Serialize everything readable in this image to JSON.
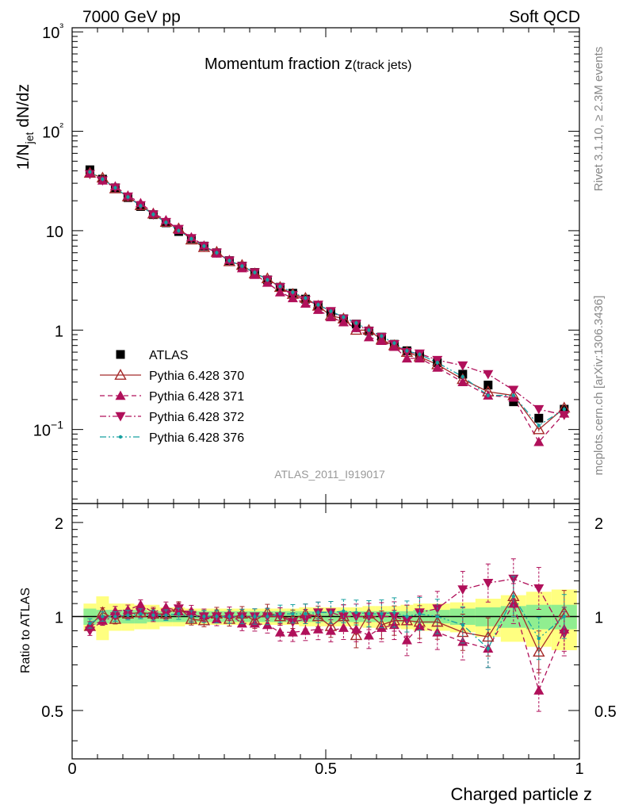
{
  "header": {
    "beam": "7000 GeV pp",
    "category": "Soft QCD"
  },
  "side": {
    "rivet": "Rivet 3.1.10, ≥ 2.3M events",
    "mcplots": "mcplots.cern.ch [arXiv:1306.3436]"
  },
  "chart_data": {
    "type": "scatter",
    "title": "Momentum fraction z",
    "title_sub": "(track jets)",
    "analysis": "ATLAS_2011_I919017",
    "xlabel": "Charged particle z",
    "ylabel_main_parts": [
      "1/N",
      "jet",
      " dN/dz"
    ],
    "ylabel_ratio": "Ratio to ATLAS",
    "xlim": [
      0,
      1
    ],
    "ylim_main": [
      0.018,
      1100
    ],
    "yscale_main": "log",
    "ylim_ratio": [
      0.35,
      2.3
    ],
    "yscale_ratio": "log",
    "x_ticks": [
      "0",
      "0.5",
      "1"
    ],
    "y_ticks_main": [
      "10−1",
      "1",
      "10",
      "10²",
      "10³"
    ],
    "y_ticks_ratio": [
      "0.5",
      "1",
      "2"
    ],
    "x": [
      0.035,
      0.06,
      0.085,
      0.11,
      0.135,
      0.16,
      0.185,
      0.21,
      0.235,
      0.26,
      0.285,
      0.31,
      0.335,
      0.36,
      0.385,
      0.41,
      0.435,
      0.46,
      0.485,
      0.51,
      0.535,
      0.56,
      0.585,
      0.61,
      0.635,
      0.66,
      0.685,
      0.72,
      0.77,
      0.82,
      0.87,
      0.92,
      0.97
    ],
    "series": [
      {
        "name": "ATLAS",
        "marker": "square",
        "color": "#000000",
        "values": [
          41,
          33,
          27,
          21.5,
          17.5,
          14.5,
          12,
          9.8,
          8.3,
          7,
          6,
          5,
          4.4,
          3.8,
          3.2,
          2.7,
          2.35,
          2.05,
          1.75,
          1.5,
          1.3,
          1.15,
          0.98,
          0.85,
          0.72,
          0.62,
          0.56,
          0.47,
          0.36,
          0.28,
          0.19,
          0.13,
          0.16
        ]
      },
      {
        "name": "Pythia 6.428 370",
        "marker": "triangle-open",
        "color": "#a52a2a",
        "line": "solid",
        "values": [
          38,
          34,
          26.5,
          22,
          18,
          14.8,
          12.2,
          10.5,
          8.1,
          6.8,
          6.1,
          4.9,
          4.5,
          3.7,
          3.3,
          2.7,
          2.3,
          2.1,
          1.75,
          1.4,
          1.3,
          1.0,
          1.0,
          0.8,
          0.7,
          0.6,
          0.54,
          0.45,
          0.32,
          0.24,
          0.22,
          0.1,
          0.165
        ]
      },
      {
        "name": "Pythia 6.428 371",
        "marker": "triangle-up",
        "color": "#b0105a",
        "line": "dashed",
        "values": [
          38,
          32,
          28,
          22.5,
          19,
          15,
          12.8,
          10.2,
          8.6,
          7.1,
          5.9,
          5.1,
          4.2,
          3.6,
          3.0,
          2.4,
          2.1,
          1.85,
          1.6,
          1.35,
          1.2,
          1.05,
          0.85,
          0.78,
          0.68,
          0.52,
          0.52,
          0.42,
          0.3,
          0.22,
          0.21,
          0.075,
          0.145
        ]
      },
      {
        "name": "Pythia 6.428 372",
        "marker": "triangle-down",
        "color": "#b0105a",
        "line": "dashdot",
        "values": [
          37,
          32,
          27,
          22,
          18,
          14.5,
          12.2,
          10.4,
          8.4,
          7.0,
          6.0,
          5.0,
          4.4,
          3.8,
          3.2,
          2.7,
          2.25,
          2.0,
          1.8,
          1.55,
          1.3,
          1.15,
          0.98,
          0.85,
          0.72,
          0.6,
          0.58,
          0.5,
          0.44,
          0.36,
          0.25,
          0.16,
          0.14
        ]
      },
      {
        "name": "Pythia 6.428 376",
        "marker": "dot",
        "color": "#17a0a0",
        "line": "dashdotdot",
        "values": [
          39,
          33,
          27,
          21.8,
          17.8,
          14.6,
          12.1,
          10.0,
          8.3,
          7.0,
          6.0,
          5.0,
          4.4,
          3.8,
          3.2,
          2.75,
          2.4,
          2.1,
          1.8,
          1.55,
          1.35,
          1.18,
          1.0,
          0.87,
          0.74,
          0.62,
          0.57,
          0.47,
          0.34,
          0.22,
          0.22,
          0.11,
          0.16
        ]
      }
    ],
    "ratio_series": [
      {
        "name": "Pythia 6.428 370",
        "values": [
          0.93,
          1.03,
          0.98,
          1.02,
          1.03,
          1.02,
          1.02,
          1.07,
          0.98,
          0.97,
          1.02,
          0.98,
          1.02,
          0.97,
          1.03,
          1.0,
          0.98,
          1.02,
          1.0,
          0.93,
          1.0,
          0.87,
          1.02,
          0.94,
          0.97,
          0.97,
          0.96,
          0.96,
          0.89,
          0.86,
          1.16,
          0.77,
          1.03
        ]
      },
      {
        "name": "Pythia 6.428 371",
        "values": [
          0.93,
          0.97,
          1.04,
          1.05,
          1.09,
          1.03,
          1.07,
          1.04,
          1.04,
          1.01,
          0.98,
          1.02,
          0.95,
          0.95,
          0.94,
          0.89,
          0.89,
          0.9,
          0.91,
          0.9,
          0.92,
          0.91,
          0.87,
          0.92,
          0.94,
          0.84,
          0.93,
          0.89,
          0.83,
          0.79,
          1.1,
          0.58,
          0.91
        ]
      },
      {
        "name": "Pythia 6.428 372",
        "values": [
          0.9,
          0.97,
          1.0,
          1.02,
          1.03,
          1.0,
          1.02,
          1.06,
          1.01,
          1.0,
          1.0,
          1.0,
          1.0,
          1.0,
          1.0,
          1.0,
          0.96,
          0.98,
          1.03,
          1.03,
          1.0,
          1.0,
          1.0,
          1.0,
          1.0,
          0.97,
          1.03,
          1.06,
          1.22,
          1.28,
          1.32,
          1.23,
          0.88
        ]
      },
      {
        "name": "Pythia 6.428 376",
        "values": [
          0.95,
          1.0,
          1.0,
          1.01,
          1.02,
          1.01,
          1.01,
          1.02,
          1.0,
          1.0,
          1.0,
          1.0,
          1.0,
          1.0,
          1.0,
          1.02,
          1.02,
          1.02,
          1.03,
          1.03,
          1.04,
          1.03,
          1.02,
          1.02,
          1.03,
          1.0,
          1.02,
          1.0,
          0.94,
          0.79,
          1.16,
          0.85,
          1.0
        ]
      }
    ],
    "band_inner": [
      0.06,
      0.05,
      0.05,
      0.05,
      0.05,
      0.04,
      0.04,
      0.04,
      0.04,
      0.04,
      0.04,
      0.04,
      0.04,
      0.04,
      0.04,
      0.04,
      0.04,
      0.04,
      0.04,
      0.04,
      0.04,
      0.04,
      0.04,
      0.04,
      0.04,
      0.04,
      0.05,
      0.05,
      0.06,
      0.07,
      0.08,
      0.09,
      0.09
    ],
    "band_outer": [
      0.1,
      0.16,
      0.1,
      0.1,
      0.09,
      0.09,
      0.07,
      0.07,
      0.06,
      0.06,
      0.06,
      0.06,
      0.06,
      0.06,
      0.06,
      0.06,
      0.06,
      0.07,
      0.07,
      0.07,
      0.07,
      0.07,
      0.08,
      0.08,
      0.08,
      0.09,
      0.1,
      0.1,
      0.11,
      0.14,
      0.17,
      0.2,
      0.22
    ],
    "colors": {
      "band_inner": "#90ee90",
      "band_outer": "#ffff80"
    }
  }
}
